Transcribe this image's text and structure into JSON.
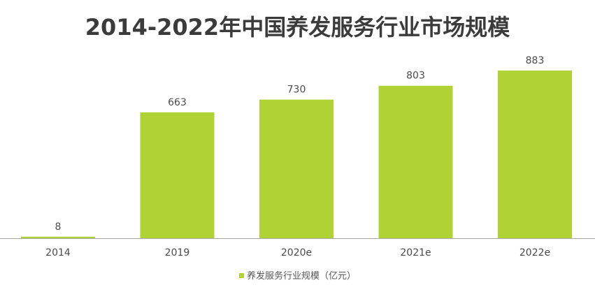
{
  "chart_data": {
    "type": "bar",
    "title": "2014-2022年中国养发服务行业市场规模",
    "categories": [
      "2014",
      "2019",
      "2020e",
      "2021e",
      "2022e"
    ],
    "series": [
      {
        "name": "养发服务行业规模（亿元）",
        "values": [
          8,
          663,
          730,
          803,
          883
        ],
        "color": "#b0d234"
      }
    ],
    "data_labels": [
      "8",
      "663",
      "730",
      "803",
      "883"
    ],
    "ylim": [
      0,
      883
    ],
    "grid": false,
    "legend_position": "bottom-center",
    "axis_color": "#a6a6a6"
  }
}
